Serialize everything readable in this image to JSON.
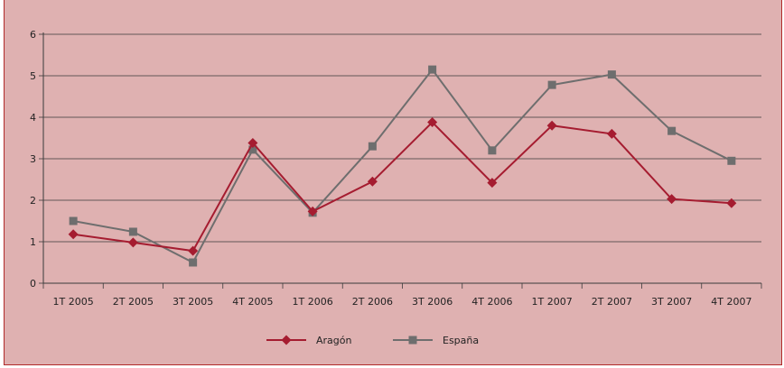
{
  "chart_data": {
    "type": "line",
    "categories": [
      "1T 2005",
      "2T 2005",
      "3T 2005",
      "4T 2005",
      "1T 2006",
      "2T 2006",
      "3T 2006",
      "4T 2006",
      "1T 2007",
      "2T 2007",
      "3T 2007",
      "4T 2007"
    ],
    "series": [
      {
        "name": "Aragón",
        "color": "#a51c30",
        "marker": "diamond",
        "values": [
          1.18,
          0.98,
          0.78,
          3.38,
          1.73,
          2.45,
          3.88,
          2.42,
          3.8,
          3.6,
          2.03,
          1.93
        ]
      },
      {
        "name": "España",
        "color": "#6e6e6e",
        "marker": "square",
        "values": [
          1.5,
          1.24,
          0.5,
          3.22,
          1.7,
          3.3,
          5.15,
          3.2,
          4.78,
          5.03,
          3.67,
          2.95
        ]
      }
    ],
    "y_ticks": [
      "0",
      "1",
      "2",
      "3",
      "4",
      "5",
      "6"
    ],
    "ylim": [
      0,
      6
    ],
    "grid": true,
    "legend_position": "bottom-center"
  },
  "colors": {
    "background": "#dfb1b1",
    "frame_border": "#b02a2a",
    "axis": "#3a3a3a",
    "grid": "#3a3a3a"
  }
}
